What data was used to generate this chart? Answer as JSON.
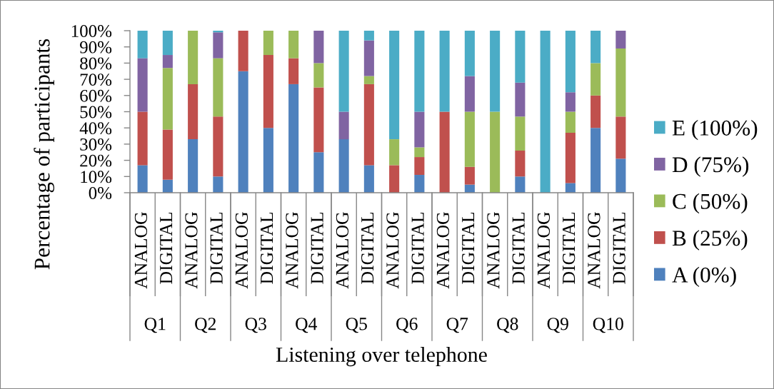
{
  "chart_data": {
    "type": "bar",
    "stacked": true,
    "xlabel": "Listening over telephone",
    "ylabel": "Percentage of participants",
    "categories": [
      "ANALOG",
      "DIGITAL",
      "ANALOG",
      "DIGITAL",
      "ANALOG",
      "DIGITAL",
      "ANALOG",
      "DIGITAL",
      "ANALOG",
      "DIGITAL",
      "ANALOG",
      "DIGITAL",
      "ANALOG",
      "DIGITAL",
      "ANALOG",
      "DIGITAL",
      "ANALOG",
      "DIGITAL",
      "ANALOG",
      "DIGITAL"
    ],
    "annotations": [
      "Q1",
      "Q2",
      "Q3",
      "Q4",
      "Q5",
      "Q6",
      "Q7",
      "Q8",
      "Q9",
      "Q10"
    ],
    "series": [
      {
        "name": "A (0%)",
        "color": "#4f81bd",
        "values": [
          17,
          8,
          33,
          10,
          75,
          40,
          67,
          25,
          33,
          17,
          0,
          11,
          0,
          5,
          0,
          10,
          0,
          6,
          40,
          21
        ]
      },
      {
        "name": "B (25%)",
        "color": "#c0504d",
        "values": [
          33,
          31,
          34,
          37,
          25,
          45,
          16,
          40,
          0,
          50,
          17,
          11,
          50,
          11,
          0,
          16,
          0,
          31,
          20,
          26
        ]
      },
      {
        "name": "C (50%)",
        "color": "#9bbb59",
        "values": [
          0,
          38,
          33,
          36,
          0,
          15,
          17,
          15,
          0,
          5,
          16,
          6,
          0,
          34,
          50,
          21,
          0,
          13,
          20,
          42
        ]
      },
      {
        "name": "D (75%)",
        "color": "#8064a2",
        "values": [
          33,
          8,
          0,
          16,
          0,
          0,
          0,
          20,
          17,
          22,
          0,
          22,
          0,
          22,
          0,
          21,
          0,
          12,
          0,
          11
        ]
      },
      {
        "name": "E (100%)",
        "color": "#4bacc6",
        "values": [
          17,
          15,
          0,
          1,
          0,
          0,
          0,
          0,
          50,
          6,
          67,
          50,
          50,
          28,
          50,
          32,
          100,
          38,
          20,
          0
        ]
      }
    ],
    "ylim": [
      0,
      100
    ],
    "yticks": [
      {
        "value": 0,
        "label": "0%"
      },
      {
        "value": 10,
        "label": "10%"
      },
      {
        "value": 20,
        "label": "20%"
      },
      {
        "value": 30,
        "label": "30%"
      },
      {
        "value": 40,
        "label": "40%"
      },
      {
        "value": 50,
        "label": "50%"
      },
      {
        "value": 60,
        "label": "60%"
      },
      {
        "value": 70,
        "label": "70%"
      },
      {
        "value": 80,
        "label": "80%"
      },
      {
        "value": 90,
        "label": "90%"
      },
      {
        "value": 100,
        "label": "100%"
      }
    ],
    "legend": "right"
  }
}
